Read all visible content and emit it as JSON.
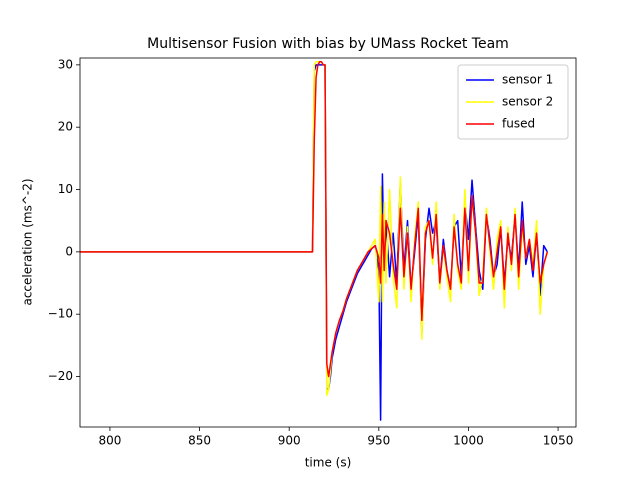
{
  "chart_data": {
    "type": "line",
    "title": "Multisensor Fusion with bias by UMass Rocket Team",
    "x_label": "time (s)",
    "y_label": "acceleration (ms^-2)",
    "x": [
      783,
      850,
      912,
      913,
      914,
      915,
      916,
      917,
      918,
      919,
      920,
      921,
      922,
      923,
      924,
      926,
      928,
      930,
      932,
      934,
      936,
      938,
      940,
      942,
      944,
      946,
      948,
      950,
      951,
      952,
      953,
      954,
      956,
      958,
      960,
      962,
      964,
      966,
      968,
      970,
      972,
      974,
      976,
      978,
      980,
      982,
      984,
      986,
      988,
      990,
      992,
      994,
      996,
      998,
      1000,
      1002,
      1004,
      1006,
      1008,
      1010,
      1012,
      1014,
      1016,
      1018,
      1020,
      1022,
      1024,
      1026,
      1028,
      1030,
      1032,
      1034,
      1036,
      1038,
      1040,
      1042,
      1044
    ],
    "series": [
      {
        "name": "sensor 1",
        "color": "#0000ff",
        "values": [
          0,
          0,
          0,
          0,
          29,
          30,
          30,
          30,
          30,
          30,
          30,
          -22,
          -22,
          -20,
          -17,
          -14,
          -12,
          -10,
          -8,
          -6.5,
          -5,
          -3.5,
          -2.5,
          -1.5,
          -0.5,
          0.5,
          1,
          -3,
          -27,
          12.5,
          -2,
          5,
          -4,
          3,
          -5,
          11,
          -3,
          5,
          -6,
          0,
          6,
          -13,
          2,
          7,
          3,
          5,
          -5,
          2,
          -3,
          -6,
          4,
          5,
          -4,
          8,
          2,
          11.5,
          4,
          -3,
          -6,
          6,
          2,
          -4,
          -2,
          4,
          -5,
          2,
          -1,
          6,
          -3,
          8,
          -2,
          1,
          -4,
          3,
          -7,
          1,
          0
        ]
      },
      {
        "name": "sensor 2",
        "color": "#ffff00",
        "values": [
          0,
          0,
          0,
          0,
          30,
          30.5,
          30.5,
          30.5,
          30.5,
          30,
          30,
          -23,
          -22,
          -19,
          -16,
          -13,
          -11,
          -9.5,
          -7.5,
          -6,
          -4.5,
          -3,
          -2,
          -1,
          0,
          1,
          2,
          -8,
          10.5,
          -8,
          8,
          -5,
          10,
          -4,
          -9,
          12,
          -6,
          4,
          -8,
          2,
          8,
          -14,
          4,
          5,
          -2,
          8,
          -6,
          1,
          -4,
          -8,
          6,
          -3,
          -6,
          10,
          -5,
          9,
          3,
          -7,
          -4,
          7,
          0,
          -6,
          2,
          5,
          -9,
          4,
          -3,
          7,
          -6,
          4,
          -1,
          2,
          -2,
          5,
          -10,
          -2,
          0
        ]
      },
      {
        "name": "fused",
        "color": "#ff0000",
        "values": [
          0,
          0,
          0,
          0,
          18,
          28,
          30,
          30.5,
          30.5,
          30,
          30,
          -18,
          -20,
          -18,
          -16,
          -13,
          -11,
          -9.5,
          -7.5,
          -6,
          -4.5,
          -3,
          -2,
          -1,
          0,
          0.5,
          1,
          -1,
          -5,
          6,
          -3,
          5,
          3,
          -2,
          -6,
          7,
          -4,
          3,
          -6,
          1,
          7,
          -11,
          3,
          5,
          -1,
          6,
          -5,
          1,
          -3,
          -6,
          4,
          -2,
          -5,
          7,
          -3,
          9,
          3,
          -5,
          -5,
          6,
          1,
          -4,
          0,
          4,
          -6,
          3,
          -2,
          6,
          -4,
          5,
          -1,
          2,
          -3,
          3,
          -5,
          -2,
          0
        ]
      }
    ],
    "xlim": [
      783.3,
      1060
    ],
    "ylim": [
      -28.1,
      31.1
    ],
    "xticks": [
      800,
      850,
      900,
      950,
      1000,
      1050
    ],
    "yticks": [
      {
        "value": -20,
        "label": "−20"
      },
      {
        "value": -10,
        "label": "−10"
      },
      0,
      10,
      20,
      30
    ],
    "grid": false,
    "legend": "upper right"
  }
}
